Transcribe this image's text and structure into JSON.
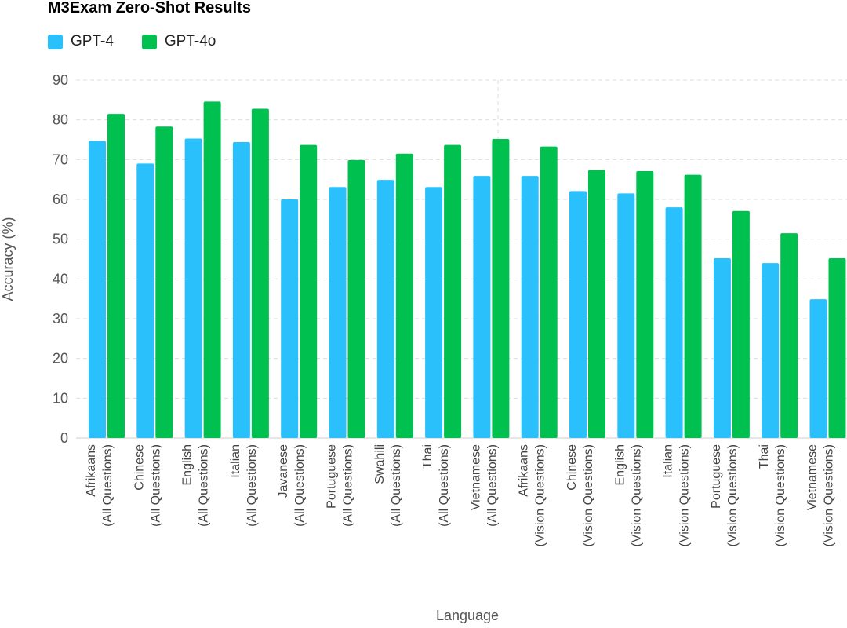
{
  "chart_data": {
    "type": "bar",
    "title": "M3Exam Zero-Shot Results",
    "xlabel": "Language",
    "ylabel": "Accuracy (%)",
    "ylim": [
      0,
      90
    ],
    "yticks": [
      0,
      10,
      20,
      30,
      40,
      50,
      60,
      70,
      80,
      90
    ],
    "grid": true,
    "legend_position": "top-left",
    "categories": [
      [
        "Afrikaans",
        "(All Questions)"
      ],
      [
        "Chinese",
        "(All Questions)"
      ],
      [
        "English",
        "(All Questions)"
      ],
      [
        "Italian",
        "(All Questions)"
      ],
      [
        "Javanese",
        "(All Questions)"
      ],
      [
        "Portuguese",
        "(All Questions)"
      ],
      [
        "Swahili",
        "(All Questions)"
      ],
      [
        "Thai",
        "(All Questions)"
      ],
      [
        "Vietnamese",
        "(All Questions)"
      ],
      [
        "Afrikaans",
        "(Vision Questions)"
      ],
      [
        "Chinese",
        "(Vision Questions)"
      ],
      [
        "English",
        "(Vision Questions)"
      ],
      [
        "Italian",
        "(Vision Questions)"
      ],
      [
        "Portuguese",
        "(Vision Questions)"
      ],
      [
        "Thai",
        "(Vision Questions)"
      ],
      [
        "Vietnamese",
        "(Vision Questions)"
      ]
    ],
    "series": [
      {
        "name": "GPT-4",
        "color": "#2ac0fc",
        "values": [
          74.7,
          69.0,
          75.3,
          74.4,
          60.0,
          63.1,
          64.9,
          63.1,
          65.9,
          65.9,
          62.1,
          61.5,
          58.0,
          45.2,
          44.0,
          34.9
        ]
      },
      {
        "name": "GPT-4o",
        "color": "#00c14f",
        "values": [
          81.5,
          78.3,
          84.6,
          82.8,
          73.7,
          69.9,
          71.5,
          73.7,
          75.2,
          73.3,
          67.4,
          67.1,
          66.2,
          57.1,
          51.5,
          45.2
        ]
      }
    ]
  }
}
